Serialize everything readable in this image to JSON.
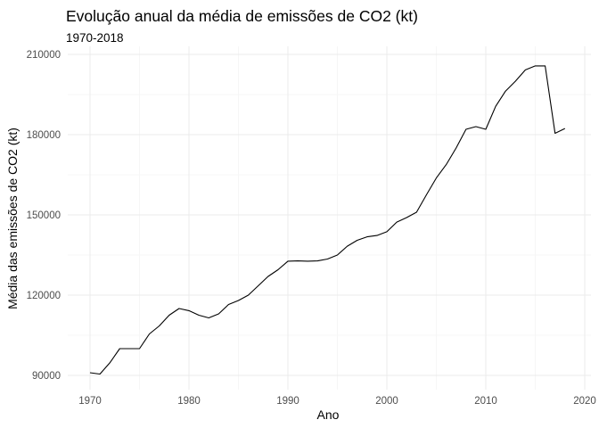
{
  "chart_data": {
    "type": "line",
    "title": "Evolução anual da média de emissões de CO2 (kt)",
    "subtitle": "1970-2018",
    "xlabel": "Ano",
    "ylabel": "Média das emissões de CO2 (kt)",
    "xlim": [
      1970,
      2018
    ],
    "ylim": [
      90000,
      210000
    ],
    "xticks": [
      1970,
      1980,
      1990,
      2000,
      2010,
      2020
    ],
    "yticks": [
      90000,
      120000,
      150000,
      180000,
      210000
    ],
    "xtick_labels": [
      "1970",
      "1980",
      "1990",
      "2000",
      "2010",
      "2020"
    ],
    "ytick_labels": [
      "90000",
      "120000",
      "150000",
      "180000",
      "210000"
    ],
    "grid": true,
    "series": [
      {
        "x": [
          1970,
          1971,
          1972,
          1973,
          1974,
          1975,
          1976,
          1977,
          1978,
          1979,
          1980,
          1981,
          1982,
          1983,
          1984,
          1985,
          1986,
          1987,
          1988,
          1989,
          1990,
          1991,
          1992,
          1993,
          1994,
          1995,
          1996,
          1997,
          1998,
          1999,
          2000,
          2001,
          2002,
          2003,
          2004,
          2005,
          2006,
          2007,
          2008,
          2009,
          2010,
          2011,
          2012,
          2013,
          2014,
          2015,
          2016,
          2017,
          2018
        ],
        "values": [
          91000,
          90500,
          94700,
          100000,
          100000,
          100000,
          105500,
          108500,
          112500,
          115000,
          114200,
          112500,
          111500,
          113000,
          116500,
          118000,
          120000,
          123500,
          127000,
          129500,
          132700,
          132800,
          132700,
          132800,
          133500,
          135000,
          138300,
          140500,
          141800,
          142300,
          143700,
          147300,
          149000,
          151000,
          157500,
          163800,
          168800,
          175000,
          182000,
          183000,
          182000,
          190600,
          196300,
          200000,
          204200,
          205700,
          205700,
          180500,
          182300
        ]
      }
    ]
  }
}
